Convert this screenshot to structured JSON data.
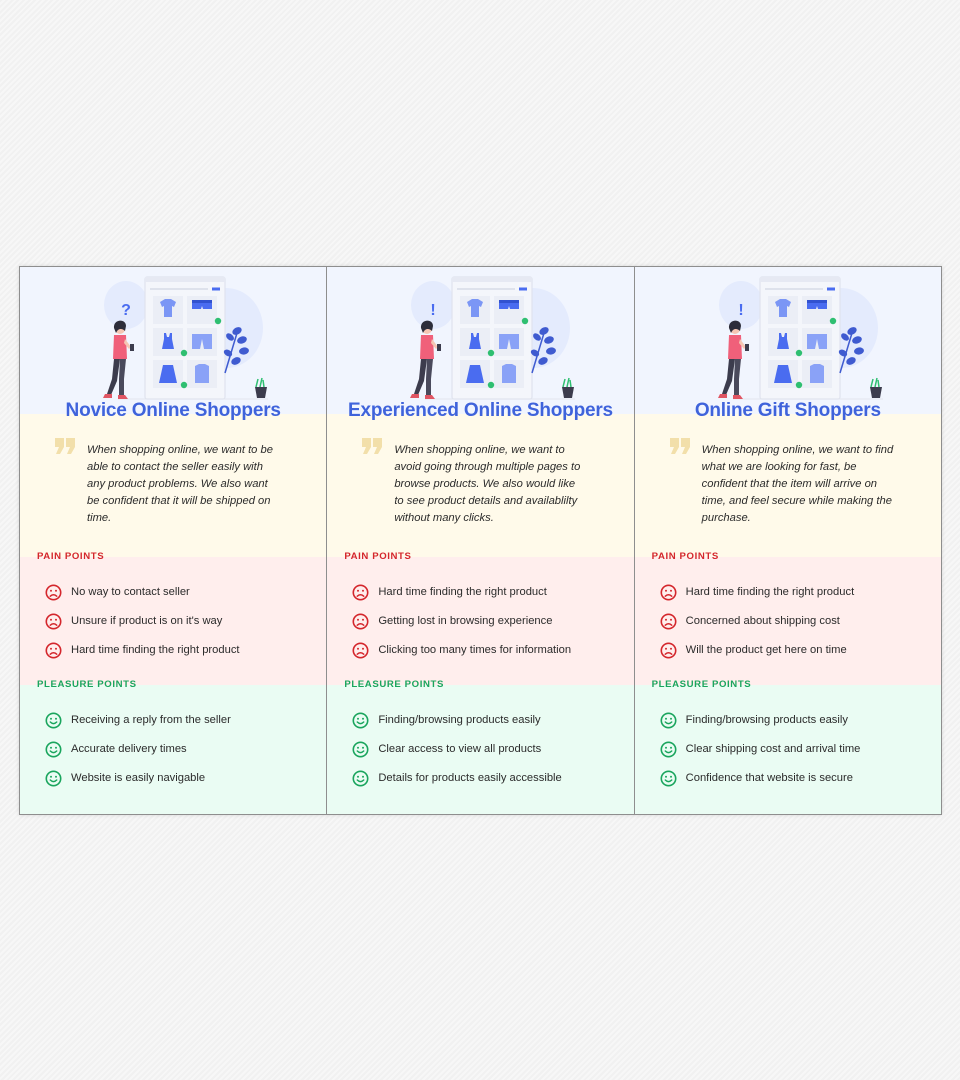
{
  "personas": [
    {
      "title": "Novice Online Shoppers",
      "symbol": "?",
      "quote": "When shopping online, we want to be able to contact the seller easily with any product problems. We also want be confident that it will be shipped on time.",
      "pain_label": "PAIN POINTS",
      "pain_points": [
        "No way to contact seller",
        "Unsure if product is on it's way",
        "Hard time finding the right product"
      ],
      "pleasure_label": "PLEASURE POINTS",
      "pleasure_points": [
        "Receiving a reply from the seller",
        "Accurate delivery times",
        "Website is easily navigable"
      ]
    },
    {
      "title": "Experienced Online Shoppers",
      "symbol": "!",
      "quote": "When shopping online, we want to avoid going through multiple pages to browse products. We also would like to see product details and availablilty without many clicks.",
      "pain_label": "PAIN POINTS",
      "pain_points": [
        "Hard time finding the right product",
        "Getting lost in browsing experience",
        "Clicking too many times for information"
      ],
      "pleasure_label": "PLEASURE POINTS",
      "pleasure_points": [
        "Finding/browsing products easily",
        "Clear access to view all products",
        "Details for products easily accessible"
      ]
    },
    {
      "title": "Online Gift Shoppers",
      "symbol": "!",
      "quote": "When shopping online, we want to find what we are looking for fast, be confident that the item will arrive on time, and feel secure while making the purchase.",
      "pain_label": "PAIN POINTS",
      "pain_points": [
        "Hard time finding the right product",
        "Concerned about shipping cost",
        "Will the product get here on time"
      ],
      "pleasure_label": "PLEASURE POINTS",
      "pleasure_points": [
        "Finding/browsing products easily",
        "Clear shipping cost and arrival time",
        "Confidence that website is secure"
      ]
    }
  ],
  "colors": {
    "title": "#3f63db",
    "pain": "#d4262c",
    "pleasure": "#1aa55d",
    "quote_mark": "#f2dfaa",
    "illustration_blue": "#4a6cf0"
  },
  "icons": {
    "pain": "sad-face-icon",
    "pleasure": "smile-face-icon",
    "quote": "quote-mark-icon",
    "illustration": "shopper-illustration"
  }
}
